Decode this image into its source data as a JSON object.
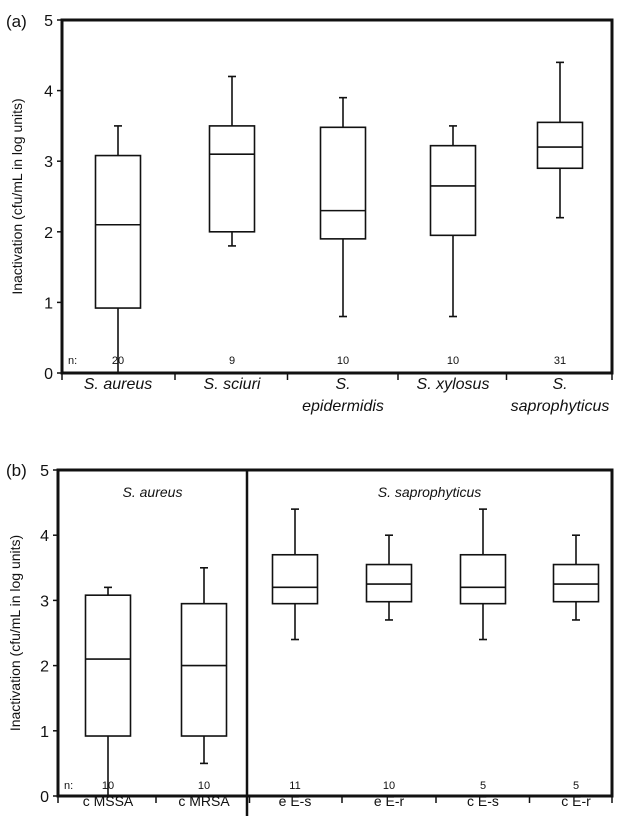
{
  "chart_data": [
    {
      "type": "box",
      "panel_label": "(a)",
      "ylabel": "Inactivation  (cfu/mL in log units)",
      "ylim": [
        0,
        5
      ],
      "yticks": [
        "0",
        "1",
        "2",
        "3",
        "4",
        "5"
      ],
      "n_prefix": "n:",
      "categories": [
        {
          "label": [
            "S. aureus"
          ],
          "n": "20",
          "min": 0.0,
          "q1": 0.92,
          "median": 2.1,
          "q3": 3.08,
          "max": 3.5
        },
        {
          "label": [
            "S. sciuri"
          ],
          "n": "9",
          "min": 1.8,
          "q1": 2.0,
          "median": 3.1,
          "q3": 3.5,
          "max": 4.2
        },
        {
          "label": [
            "S.",
            "epidermidis"
          ],
          "n": "10",
          "min": 0.8,
          "q1": 1.9,
          "median": 2.3,
          "q3": 3.48,
          "max": 3.9
        },
        {
          "label": [
            "S. xylosus"
          ],
          "n": "10",
          "min": 0.8,
          "q1": 1.95,
          "median": 2.65,
          "q3": 3.22,
          "max": 3.5
        },
        {
          "label": [
            "S.",
            "saprophyticus"
          ],
          "n": "31",
          "min": 2.2,
          "q1": 2.9,
          "median": 3.2,
          "q3": 3.55,
          "max": 4.4
        }
      ]
    },
    {
      "type": "box",
      "panel_label": "(b)",
      "ylabel": "Inactivation (cfu/mL in log units)",
      "ylim": [
        0,
        5
      ],
      "yticks": [
        "0",
        "1",
        "2",
        "3",
        "4",
        "5"
      ],
      "n_prefix": "n:",
      "groups": [
        {
          "title": "S. aureus",
          "span": [
            0,
            1
          ]
        },
        {
          "title": "S. saprophyticus",
          "span": [
            2,
            5
          ]
        }
      ],
      "categories": [
        {
          "label": [
            "c MSSA"
          ],
          "n": "10",
          "min": 0.0,
          "q1": 0.92,
          "median": 2.1,
          "q3": 3.08,
          "max": 3.2
        },
        {
          "label": [
            "c MRSA"
          ],
          "n": "10",
          "min": 0.5,
          "q1": 0.92,
          "median": 2.0,
          "q3": 2.95,
          "max": 3.5
        },
        {
          "label": [
            "e E-s"
          ],
          "n": "11",
          "min": 2.4,
          "q1": 2.95,
          "median": 3.2,
          "q3": 3.7,
          "max": 4.4
        },
        {
          "label": [
            "e E-r"
          ],
          "n": "10",
          "min": 2.7,
          "q1": 2.98,
          "median": 3.25,
          "q3": 3.55,
          "max": 4.0
        },
        {
          "label": [
            "c E-s"
          ],
          "n": "5",
          "min": 2.4,
          "q1": 2.95,
          "median": 3.2,
          "q3": 3.7,
          "max": 4.4
        },
        {
          "label": [
            "c E-r"
          ],
          "n": "5",
          "min": 2.7,
          "q1": 2.98,
          "median": 3.25,
          "q3": 3.55,
          "max": 4.0
        }
      ]
    }
  ]
}
